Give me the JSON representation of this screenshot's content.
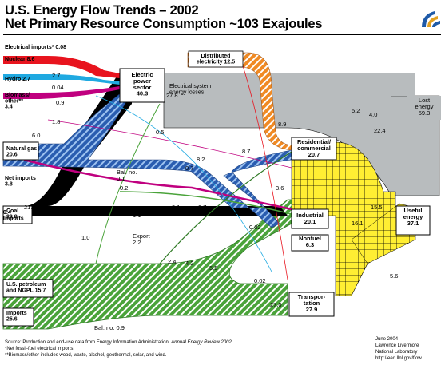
{
  "title": "U.S. Energy Flow Trends – 2002",
  "subtitle": "Net Primary Resource Consumption ~103 Exajoules",
  "sources": [
    {
      "key": "elec_imports",
      "label": "Electrical imports* 0.08"
    },
    {
      "key": "nuclear",
      "label": "Nuclear 8.6"
    },
    {
      "key": "hydro",
      "label": "Hydro 2.7"
    },
    {
      "key": "biomass",
      "label": "Biomass/ other** 3.4"
    },
    {
      "key": "natgas",
      "label": "Natural gas 20.6"
    },
    {
      "key": "netimports_gas",
      "label": "Net imports 3.8"
    },
    {
      "key": "coal",
      "label": "Coal 23.8"
    },
    {
      "key": "imports_small",
      "label": "0.4 Imports"
    },
    {
      "key": "petroleum",
      "label": "U.S. petroleum and NGPL 15.7"
    },
    {
      "key": "imports_petro",
      "label": "Imports 25.6"
    }
  ],
  "sinks": [
    {
      "key": "electric",
      "label": "Electric power sector 40.3"
    },
    {
      "key": "distributed",
      "label": "Distributed electricity 12.5"
    },
    {
      "key": "losses",
      "label": "Electrical system energy losses"
    },
    {
      "key": "residential",
      "label": "Residential/ commercial 20.7"
    },
    {
      "key": "industrial",
      "label": "Industrial 20.1"
    },
    {
      "key": "nonfuel",
      "label": "Nonfuel 6.3"
    },
    {
      "key": "transport",
      "label": "Transpor- tation 27.9"
    },
    {
      "key": "lost",
      "label": "Lost energy 59.3"
    },
    {
      "key": "useful",
      "label": "Useful energy 37.1"
    }
  ],
  "flow_labels": [
    {
      "key": "l_2_7",
      "text": "2.7"
    },
    {
      "key": "l_0_04",
      "text": "0.04"
    },
    {
      "key": "l_0_9",
      "text": "0.9"
    },
    {
      "key": "l_1_8",
      "text": "1.8"
    },
    {
      "key": "l_6_0",
      "text": "6.0"
    },
    {
      "key": "l_0_5",
      "text": "0.5"
    },
    {
      "key": "l_21_1",
      "text": "21.1"
    },
    {
      "key": "l_27_8",
      "text": "27.8"
    },
    {
      "key": "l_8_9",
      "text": "8.9"
    },
    {
      "key": "l_8_7",
      "text": "8.7"
    },
    {
      "key": "l_8_2",
      "text": "8.2"
    },
    {
      "key": "l_0_7a",
      "text": "0.7"
    },
    {
      "key": "l_bal1",
      "text": "Bal. no. 0.1"
    },
    {
      "key": "l_0_2",
      "text": "0.2"
    },
    {
      "key": "l_export1",
      "text": "Export 1.1"
    },
    {
      "key": "l_0_1",
      "text": "0.1"
    },
    {
      "key": "l_0_7b",
      "text": "0.7"
    },
    {
      "key": "l_3_6",
      "text": "3.6"
    },
    {
      "key": "l_2_3",
      "text": "2.3"
    },
    {
      "key": "l_bal2",
      "text": "Bal. no. 0.3"
    },
    {
      "key": "l_1_0",
      "text": "1.0"
    },
    {
      "key": "l_export2",
      "text": "Export 2.2"
    },
    {
      "key": "l_0_02a",
      "text": "0.02"
    },
    {
      "key": "l_0_02b",
      "text": "0.02"
    },
    {
      "key": "l_2_4",
      "text": "2.4"
    },
    {
      "key": "l_4_2",
      "text": "4.2"
    },
    {
      "key": "l_5_5",
      "text": "5.5"
    },
    {
      "key": "l_27_0",
      "text": "27.0"
    },
    {
      "key": "l_bal3",
      "text": "Bal. no. 0.9"
    },
    {
      "key": "l_5_2",
      "text": "5.2"
    },
    {
      "key": "l_4_0",
      "text": "4.0"
    },
    {
      "key": "l_22_4",
      "text": "22.4"
    },
    {
      "key": "l_15_5",
      "text": "15.5"
    },
    {
      "key": "l_16_1",
      "text": "16.1"
    },
    {
      "key": "l_5_6",
      "text": "5.6"
    }
  ],
  "footnotes": {
    "source_prefix": "Source:  Production and end-use data from Energy Information Administration, ",
    "source_italic": "Annual Energy Review 2002.",
    "note1": "*Net fossil-fuel electrical imports.",
    "note2": "**Biomass/other includes wood, waste, alcohol, geothermal, solar, and wind."
  },
  "credit": [
    "June 2004",
    "Lawrence Livermore",
    "National Laboratory",
    "http://eed.llnl.gov/flow"
  ],
  "colors": {
    "nuclear": "#e8141e",
    "hydro": "#1fa9e1",
    "biomass": "#c0007f",
    "natgas": "#2a5db0",
    "coal": "#000000",
    "petroleum": "#4aa33a",
    "electric": "#f08a24",
    "lost": "#b8bcbe",
    "useful": "#ffee33"
  }
}
